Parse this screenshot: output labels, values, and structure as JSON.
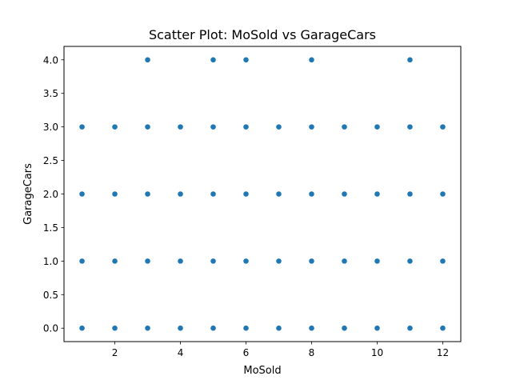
{
  "chart_data": {
    "type": "scatter",
    "title": "Scatter Plot: MoSold vs GarageCars",
    "xlabel": "MoSold",
    "ylabel": "GarageCars",
    "xlim": [
      0.45,
      12.55
    ],
    "ylim": [
      -0.2,
      4.2
    ],
    "x_ticks": [
      2,
      4,
      6,
      8,
      10,
      12
    ],
    "x_tick_labels": [
      "2",
      "4",
      "6",
      "8",
      "10",
      "12"
    ],
    "y_ticks": [
      0,
      0.5,
      1,
      1.5,
      2,
      2.5,
      3,
      3.5,
      4
    ],
    "y_tick_labels": [
      "0.0",
      "0.5",
      "1.0",
      "1.5",
      "2.0",
      "2.5",
      "3.0",
      "3.5",
      "4.0"
    ],
    "grid": false,
    "marker_color": "#1f77b4",
    "points": [
      {
        "x": 1,
        "y": 0
      },
      {
        "x": 1,
        "y": 1
      },
      {
        "x": 1,
        "y": 2
      },
      {
        "x": 1,
        "y": 3
      },
      {
        "x": 2,
        "y": 0
      },
      {
        "x": 2,
        "y": 1
      },
      {
        "x": 2,
        "y": 2
      },
      {
        "x": 2,
        "y": 3
      },
      {
        "x": 3,
        "y": 0
      },
      {
        "x": 3,
        "y": 1
      },
      {
        "x": 3,
        "y": 2
      },
      {
        "x": 3,
        "y": 3
      },
      {
        "x": 3,
        "y": 4
      },
      {
        "x": 4,
        "y": 0
      },
      {
        "x": 4,
        "y": 1
      },
      {
        "x": 4,
        "y": 2
      },
      {
        "x": 4,
        "y": 3
      },
      {
        "x": 5,
        "y": 0
      },
      {
        "x": 5,
        "y": 1
      },
      {
        "x": 5,
        "y": 2
      },
      {
        "x": 5,
        "y": 3
      },
      {
        "x": 5,
        "y": 4
      },
      {
        "x": 6,
        "y": 0
      },
      {
        "x": 6,
        "y": 1
      },
      {
        "x": 6,
        "y": 2
      },
      {
        "x": 6,
        "y": 3
      },
      {
        "x": 6,
        "y": 4
      },
      {
        "x": 7,
        "y": 0
      },
      {
        "x": 7,
        "y": 1
      },
      {
        "x": 7,
        "y": 2
      },
      {
        "x": 7,
        "y": 3
      },
      {
        "x": 8,
        "y": 0
      },
      {
        "x": 8,
        "y": 1
      },
      {
        "x": 8,
        "y": 2
      },
      {
        "x": 8,
        "y": 3
      },
      {
        "x": 8,
        "y": 4
      },
      {
        "x": 9,
        "y": 0
      },
      {
        "x": 9,
        "y": 1
      },
      {
        "x": 9,
        "y": 2
      },
      {
        "x": 9,
        "y": 3
      },
      {
        "x": 10,
        "y": 0
      },
      {
        "x": 10,
        "y": 1
      },
      {
        "x": 10,
        "y": 2
      },
      {
        "x": 10,
        "y": 3
      },
      {
        "x": 11,
        "y": 0
      },
      {
        "x": 11,
        "y": 1
      },
      {
        "x": 11,
        "y": 2
      },
      {
        "x": 11,
        "y": 3
      },
      {
        "x": 11,
        "y": 4
      },
      {
        "x": 12,
        "y": 0
      },
      {
        "x": 12,
        "y": 1
      },
      {
        "x": 12,
        "y": 2
      },
      {
        "x": 12,
        "y": 3
      }
    ]
  }
}
